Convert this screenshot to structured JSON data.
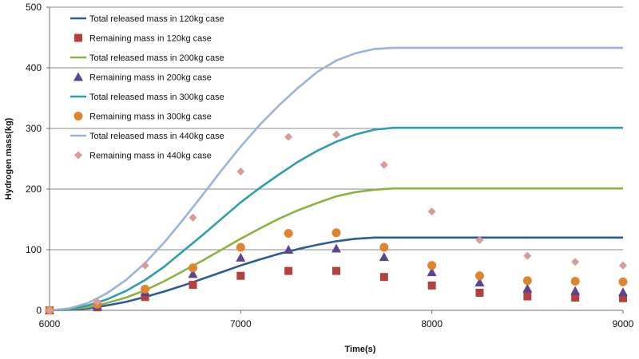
{
  "chart_data": {
    "type": "line",
    "title": "",
    "xlabel": "Time(s)",
    "ylabel": "Hydrogen mass(kg)",
    "xlim": [
      6000,
      9000
    ],
    "ylim": [
      0,
      500
    ],
    "xticks": [
      6000,
      7000,
      8000,
      9000
    ],
    "yticks": [
      0,
      100,
      200,
      300,
      400,
      500
    ],
    "grid": "horizontal",
    "legend_position": "top-left",
    "series": [
      {
        "name": "Total released mass in 120kg case",
        "kind": "line",
        "color": "#2E5C99",
        "points": [
          [
            6000,
            0
          ],
          [
            6100,
            1
          ],
          [
            6200,
            3
          ],
          [
            6300,
            8
          ],
          [
            6400,
            14
          ],
          [
            6500,
            22
          ],
          [
            6600,
            31
          ],
          [
            6700,
            41
          ],
          [
            6800,
            52
          ],
          [
            6900,
            63
          ],
          [
            7000,
            74
          ],
          [
            7100,
            84
          ],
          [
            7200,
            93
          ],
          [
            7300,
            101
          ],
          [
            7400,
            108
          ],
          [
            7500,
            114
          ],
          [
            7600,
            118
          ],
          [
            7700,
            120
          ],
          [
            7800,
            120
          ],
          [
            8000,
            120
          ],
          [
            8500,
            120
          ],
          [
            9000,
            120
          ]
        ]
      },
      {
        "name": "Remaining mass in 120kg case",
        "kind": "marker",
        "marker": "square",
        "color": "#B5413E",
        "points": [
          [
            6000,
            0
          ],
          [
            6250,
            5
          ],
          [
            6500,
            22
          ],
          [
            6750,
            42
          ],
          [
            7000,
            57
          ],
          [
            7250,
            65
          ],
          [
            7500,
            65
          ],
          [
            7750,
            55
          ],
          [
            8000,
            41
          ],
          [
            8250,
            29
          ],
          [
            8500,
            23
          ],
          [
            8750,
            21
          ],
          [
            9000,
            20
          ]
        ]
      },
      {
        "name": "Total released mass in 200kg case",
        "kind": "line",
        "color": "#8DB23F",
        "points": [
          [
            6000,
            0
          ],
          [
            6100,
            2
          ],
          [
            6200,
            5
          ],
          [
            6300,
            12
          ],
          [
            6400,
            21
          ],
          [
            6500,
            33
          ],
          [
            6600,
            48
          ],
          [
            6700,
            65
          ],
          [
            6800,
            82
          ],
          [
            6900,
            100
          ],
          [
            7000,
            118
          ],
          [
            7100,
            135
          ],
          [
            7200,
            151
          ],
          [
            7300,
            165
          ],
          [
            7400,
            177
          ],
          [
            7500,
            188
          ],
          [
            7600,
            195
          ],
          [
            7700,
            199
          ],
          [
            7800,
            201
          ],
          [
            8000,
            201
          ],
          [
            8500,
            201
          ],
          [
            9000,
            201
          ]
        ]
      },
      {
        "name": "Remaining mass in 200kg case",
        "kind": "marker",
        "marker": "triangle",
        "color": "#5B4592",
        "points": [
          [
            6000,
            0
          ],
          [
            6250,
            7
          ],
          [
            6500,
            30
          ],
          [
            6750,
            60
          ],
          [
            7000,
            87
          ],
          [
            7250,
            100
          ],
          [
            7500,
            102
          ],
          [
            7750,
            88
          ],
          [
            8000,
            63
          ],
          [
            8250,
            46
          ],
          [
            8500,
            36
          ],
          [
            8750,
            32
          ],
          [
            9000,
            30
          ]
        ]
      },
      {
        "name": "Total released mass in 300kg case",
        "kind": "line",
        "color": "#2E9EA8",
        "points": [
          [
            6000,
            0
          ],
          [
            6100,
            2
          ],
          [
            6200,
            8
          ],
          [
            6300,
            18
          ],
          [
            6400,
            32
          ],
          [
            6500,
            50
          ],
          [
            6600,
            72
          ],
          [
            6700,
            98
          ],
          [
            6800,
            124
          ],
          [
            6900,
            151
          ],
          [
            7000,
            178
          ],
          [
            7100,
            202
          ],
          [
            7200,
            224
          ],
          [
            7300,
            245
          ],
          [
            7400,
            263
          ],
          [
            7500,
            278
          ],
          [
            7600,
            290
          ],
          [
            7700,
            298
          ],
          [
            7800,
            301
          ],
          [
            8000,
            301
          ],
          [
            8500,
            301
          ],
          [
            9000,
            301
          ]
        ]
      },
      {
        "name": "Remaining mass in 300kg case",
        "kind": "marker",
        "marker": "circle",
        "color": "#E0852F",
        "points": [
          [
            6000,
            0
          ],
          [
            6250,
            10
          ],
          [
            6500,
            35
          ],
          [
            6750,
            70
          ],
          [
            7000,
            104
          ],
          [
            7250,
            127
          ],
          [
            7500,
            128
          ],
          [
            7750,
            104
          ],
          [
            8000,
            74
          ],
          [
            8250,
            57
          ],
          [
            8500,
            49
          ],
          [
            8750,
            48
          ],
          [
            9000,
            47
          ]
        ]
      },
      {
        "name": "Total released mass in 440kg case",
        "kind": "line",
        "color": "#9BB3D9",
        "points": [
          [
            6000,
            0
          ],
          [
            6100,
            3
          ],
          [
            6200,
            12
          ],
          [
            6300,
            28
          ],
          [
            6400,
            50
          ],
          [
            6500,
            78
          ],
          [
            6600,
            112
          ],
          [
            6700,
            150
          ],
          [
            6800,
            190
          ],
          [
            6900,
            231
          ],
          [
            7000,
            270
          ],
          [
            7100,
            306
          ],
          [
            7200,
            338
          ],
          [
            7300,
            367
          ],
          [
            7400,
            393
          ],
          [
            7500,
            412
          ],
          [
            7600,
            424
          ],
          [
            7700,
            431
          ],
          [
            7800,
            433
          ],
          [
            8000,
            433
          ],
          [
            8500,
            433
          ],
          [
            9000,
            433
          ]
        ]
      },
      {
        "name": "Remaining mass in 440kg case",
        "kind": "marker",
        "marker": "diamond",
        "color": "#D99A9A",
        "points": [
          [
            6000,
            0
          ],
          [
            6250,
            14
          ],
          [
            6500,
            74
          ],
          [
            6750,
            153
          ],
          [
            7000,
            229
          ],
          [
            7250,
            286
          ],
          [
            7500,
            290
          ],
          [
            7750,
            240
          ],
          [
            8000,
            163
          ],
          [
            8250,
            116
          ],
          [
            8500,
            90
          ],
          [
            8750,
            80
          ],
          [
            9000,
            74
          ]
        ]
      }
    ]
  }
}
